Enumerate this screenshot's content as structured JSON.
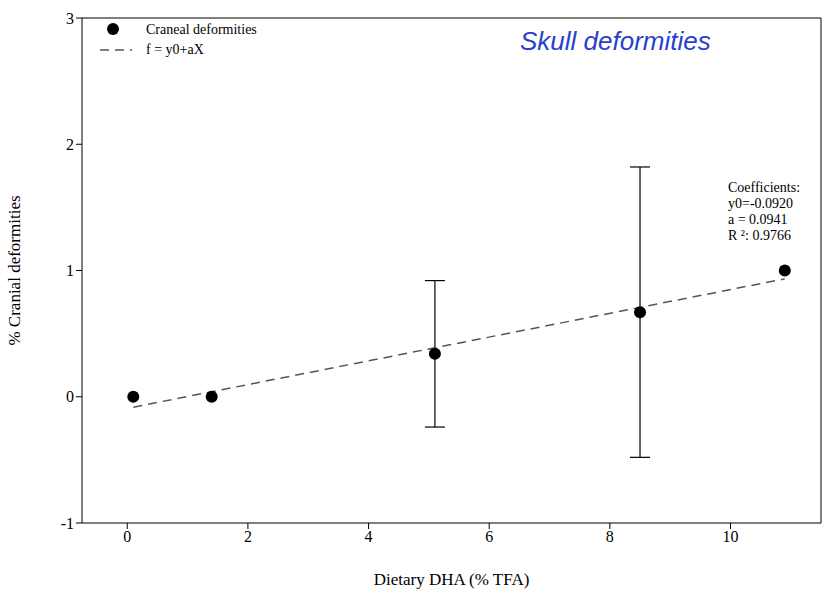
{
  "chart_data": {
    "type": "scatter",
    "annotation": "Skull deformities",
    "xlabel": "Dietary DHA (% TFA)",
    "ylabel": "% Cranial deformities",
    "x": [
      0.1,
      1.4,
      5.1,
      8.5,
      10.9
    ],
    "series": [
      {
        "name": "Craneal deformities",
        "color": "#000000",
        "marker": "circle",
        "values": [
          0,
          0,
          0.34,
          0.67,
          1.0
        ],
        "errors": [
          0,
          0,
          0.58,
          1.15,
          0
        ]
      }
    ],
    "fit": {
      "name": "f = y0+aX",
      "color": "#555555",
      "line_style": "dashed",
      "x_range": [
        0.1,
        10.9
      ],
      "coefficients_title": "Coefficients:",
      "y0": {
        "value": -0.092,
        "label": "y0=-0.0920"
      },
      "a": {
        "value": 0.0941,
        "label": "a = 0.0941"
      },
      "r2": {
        "value": 0.9766,
        "label": "R ²: 0.9766"
      }
    },
    "xlim": [
      -0.75,
      11.5
    ],
    "ylim": [
      -1,
      3
    ],
    "xticks": [
      0,
      2,
      4,
      6,
      8,
      10
    ],
    "yticks": [
      -1,
      0,
      1,
      2,
      3
    ],
    "grid": false,
    "legend": "upper left"
  }
}
